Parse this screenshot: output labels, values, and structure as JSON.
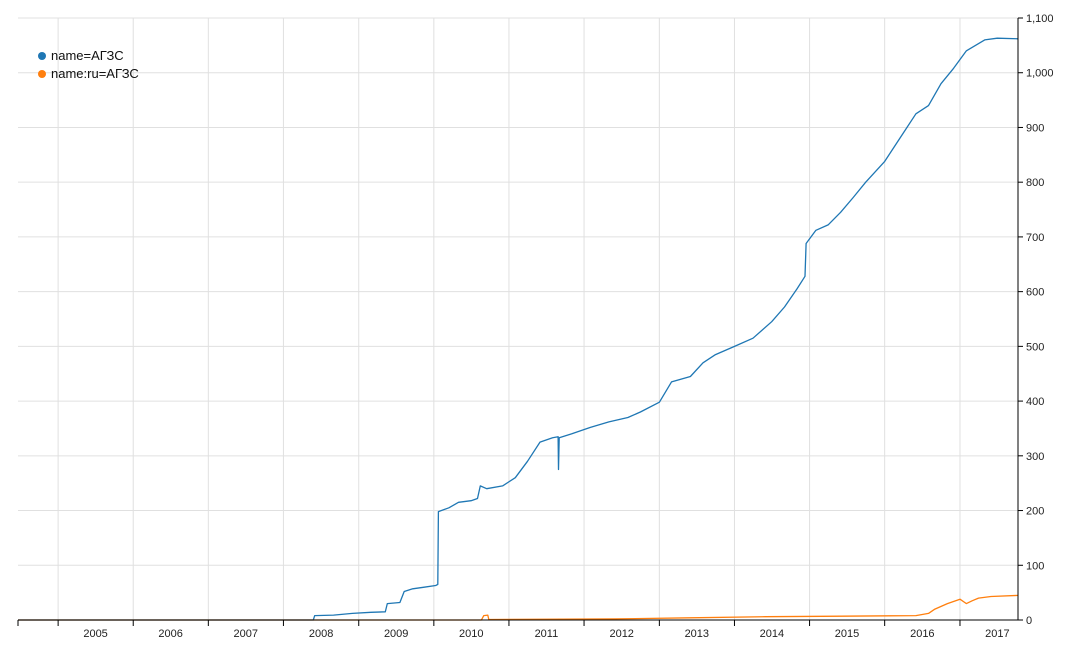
{
  "chart_data": {
    "type": "line",
    "title": "",
    "xlabel": "",
    "ylabel": "",
    "x_ticks": [
      "2005",
      "2006",
      "2007",
      "2008",
      "2009",
      "2010",
      "2011",
      "2012",
      "2013",
      "2014",
      "2015",
      "2016",
      "2017"
    ],
    "y_ticks": [
      "0",
      "100",
      "200",
      "300",
      "400",
      "500",
      "600",
      "700",
      "800",
      "900",
      "1,000",
      "1,100"
    ],
    "xlim": [
      "2004-06-20",
      "2017-10-10"
    ],
    "ylim": [
      0,
      1100
    ],
    "grid": true,
    "legend_position": "top-left",
    "series": [
      {
        "name": "name=АГЗС",
        "color": "#1f77b4",
        "points": [
          [
            "2008-05-25",
            0
          ],
          [
            "2008-06-01",
            8
          ],
          [
            "2008-09-01",
            9
          ],
          [
            "2008-12-01",
            12
          ],
          [
            "2009-03-01",
            14
          ],
          [
            "2009-05-10",
            15
          ],
          [
            "2009-05-20",
            30
          ],
          [
            "2009-07-20",
            32
          ],
          [
            "2009-08-10",
            52
          ],
          [
            "2009-09-20",
            57
          ],
          [
            "2009-11-15",
            60
          ],
          [
            "2010-01-10",
            63
          ],
          [
            "2010-01-20",
            65
          ],
          [
            "2010-01-23",
            198
          ],
          [
            "2010-03-15",
            205
          ],
          [
            "2010-05-01",
            215
          ],
          [
            "2010-07-01",
            218
          ],
          [
            "2010-08-01",
            222
          ],
          [
            "2010-08-15",
            245
          ],
          [
            "2010-09-15",
            240
          ],
          [
            "2010-12-01",
            245
          ],
          [
            "2011-02-01",
            260
          ],
          [
            "2011-04-01",
            290
          ],
          [
            "2011-06-01",
            325
          ],
          [
            "2011-08-01",
            333
          ],
          [
            "2011-08-28",
            335
          ],
          [
            "2011-08-30",
            275
          ],
          [
            "2011-09-02",
            333
          ],
          [
            "2011-11-01",
            340
          ],
          [
            "2012-02-01",
            352
          ],
          [
            "2012-05-01",
            362
          ],
          [
            "2012-08-01",
            370
          ],
          [
            "2012-10-01",
            380
          ],
          [
            "2013-01-01",
            398
          ],
          [
            "2013-03-01",
            435
          ],
          [
            "2013-06-01",
            445
          ],
          [
            "2013-08-01",
            470
          ],
          [
            "2013-10-01",
            485
          ],
          [
            "2014-01-01",
            500
          ],
          [
            "2014-04-01",
            515
          ],
          [
            "2014-07-01",
            545
          ],
          [
            "2014-09-01",
            572
          ],
          [
            "2014-11-01",
            605
          ],
          [
            "2014-12-10",
            628
          ],
          [
            "2014-12-15",
            688
          ],
          [
            "2015-02-01",
            712
          ],
          [
            "2015-04-01",
            722
          ],
          [
            "2015-06-01",
            745
          ],
          [
            "2015-08-01",
            772
          ],
          [
            "2015-10-01",
            800
          ],
          [
            "2016-01-01",
            838
          ],
          [
            "2016-04-01",
            890
          ],
          [
            "2016-06-01",
            925
          ],
          [
            "2016-08-01",
            940
          ],
          [
            "2016-10-01",
            980
          ],
          [
            "2016-12-01",
            1008
          ],
          [
            "2017-02-01",
            1040
          ],
          [
            "2017-05-01",
            1060
          ],
          [
            "2017-07-01",
            1063
          ],
          [
            "2017-10-10",
            1062
          ]
        ]
      },
      {
        "name": "name:ru=АГЗС",
        "color": "#ff7f0e",
        "points": [
          [
            "2010-08-20",
            0
          ],
          [
            "2010-09-01",
            8
          ],
          [
            "2010-09-20",
            9
          ],
          [
            "2010-09-25",
            1
          ],
          [
            "2012-06-01",
            2
          ],
          [
            "2013-06-01",
            4
          ],
          [
            "2014-06-01",
            6
          ],
          [
            "2015-06-01",
            7
          ],
          [
            "2016-06-01",
            8
          ],
          [
            "2016-08-01",
            12
          ],
          [
            "2016-09-01",
            20
          ],
          [
            "2016-11-01",
            30
          ],
          [
            "2017-01-01",
            38
          ],
          [
            "2017-02-01",
            30
          ],
          [
            "2017-03-01",
            35
          ],
          [
            "2017-04-01",
            40
          ],
          [
            "2017-06-01",
            43
          ],
          [
            "2017-10-10",
            45
          ]
        ]
      }
    ]
  }
}
